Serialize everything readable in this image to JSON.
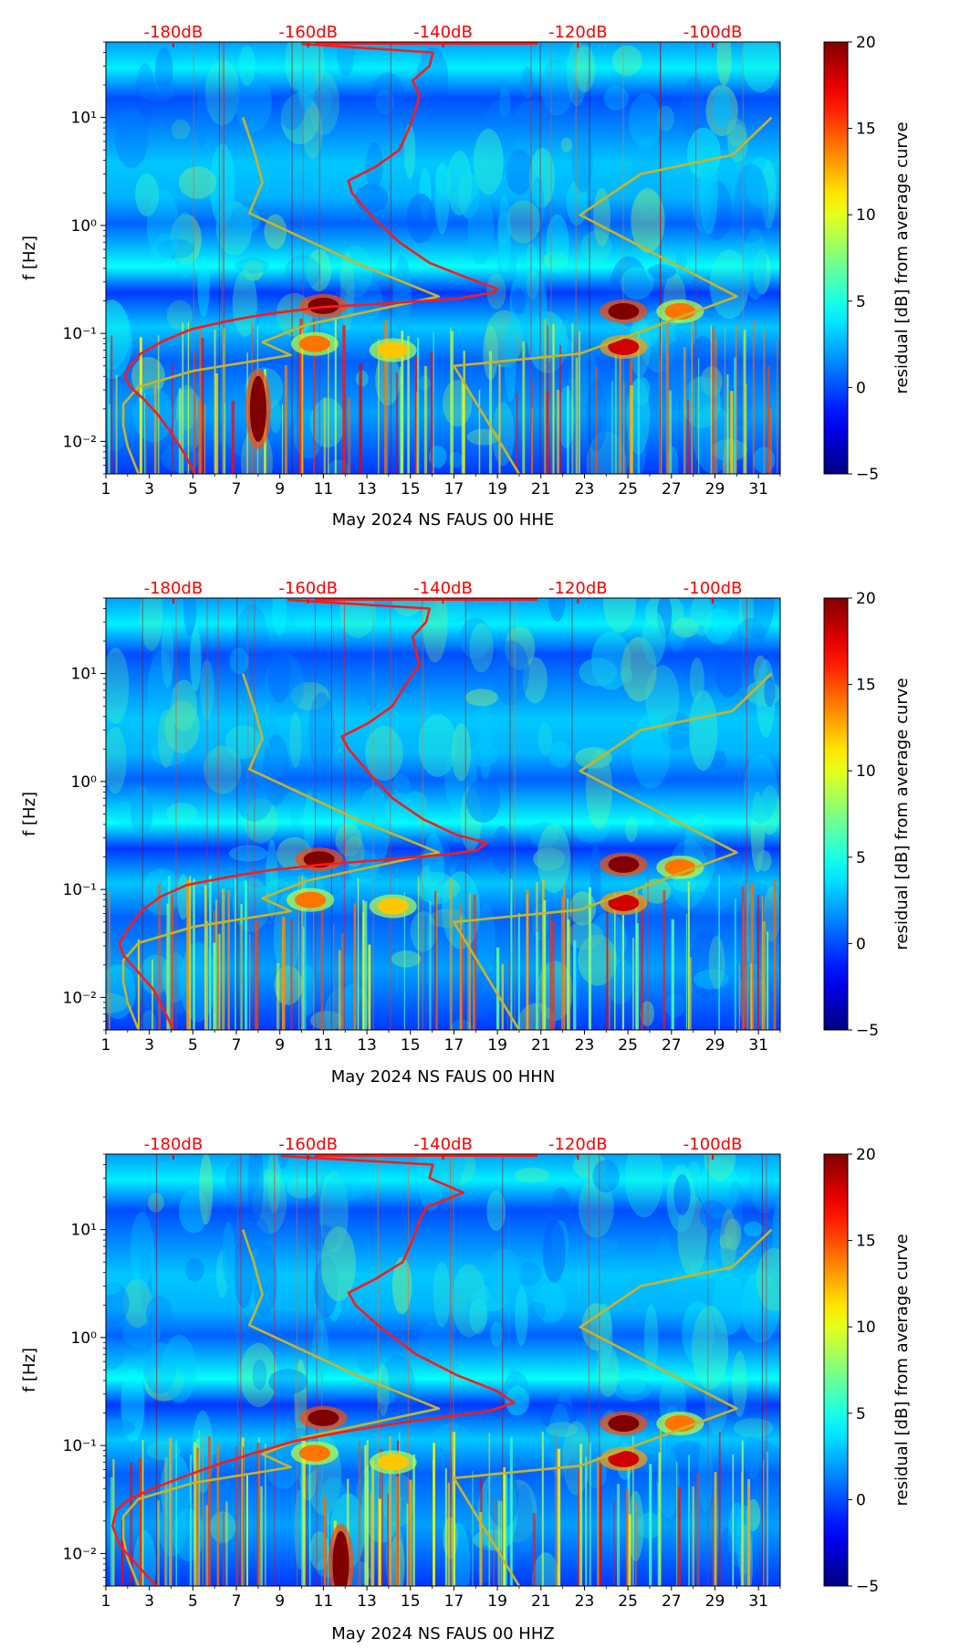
{
  "figure": {
    "colors": {
      "noise_line": "#ff1a1a",
      "model_line": "#c8b428",
      "top_label": "#ff0000",
      "text": "#000000"
    }
  },
  "colorbar": {
    "label": "residual [dB] from average curve",
    "ticks": [
      -5,
      0,
      5,
      10,
      15,
      20
    ],
    "tick_labels": [
      "−5",
      "0",
      "5",
      "10",
      "15",
      "20"
    ],
    "range": [
      -5,
      20
    ]
  },
  "chart_data": [
    {
      "type": "heatmap",
      "title": "",
      "xlabel": "May 2024 NS FAUS 00 HHE",
      "ylabel": "f [Hz]",
      "x_ticks": [
        1,
        3,
        5,
        7,
        9,
        11,
        13,
        15,
        17,
        19,
        21,
        23,
        25,
        27,
        29,
        31
      ],
      "x_tick_labels": [
        "1",
        "3",
        "5",
        "7",
        "9",
        "11",
        "13",
        "15",
        "17",
        "19",
        "21",
        "23",
        "25",
        "27",
        "29",
        "31"
      ],
      "xlim": [
        1,
        32
      ],
      "ylim": [
        0.005,
        50
      ],
      "y_scale": "log",
      "y_ticks": [
        0.01,
        0.1,
        1,
        10
      ],
      "y_tick_labels": [
        "10⁻²",
        "10⁻¹",
        "10⁰",
        "10¹"
      ],
      "top_axis_ticks": [
        -180,
        -160,
        -140,
        -120,
        -100
      ],
      "top_axis_labels": [
        "-180dB",
        "-160dB",
        "-140dB",
        "-120dB",
        "-100dB"
      ],
      "top_axis_range_db": [
        -190,
        -90
      ],
      "hotspots": [
        {
          "day": 11.0,
          "f": 0.18,
          "v": 20
        },
        {
          "day": 10.6,
          "f": 0.08,
          "v": 14
        },
        {
          "day": 24.8,
          "f": 0.16,
          "v": 20
        },
        {
          "day": 24.8,
          "f": 0.075,
          "v": 18
        },
        {
          "day": 27.4,
          "f": 0.16,
          "v": 14
        },
        {
          "day": 14.2,
          "f": 0.07,
          "v": 12
        },
        {
          "day": 8.0,
          "f": 0.02,
          "v": 20
        }
      ],
      "series": [
        {
          "name": "noise level [dB]",
          "points": [
            [
              -176.8,
              0.005
            ],
            [
              -178.5,
              0.008
            ],
            [
              -180.3,
              0.012
            ],
            [
              -182.4,
              0.018
            ],
            [
              -184.5,
              0.025
            ],
            [
              -186.4,
              0.032
            ],
            [
              -187.2,
              0.04
            ],
            [
              -186.5,
              0.05
            ],
            [
              -184.8,
              0.065
            ],
            [
              -181.5,
              0.085
            ],
            [
              -177.2,
              0.11
            ],
            [
              -172.0,
              0.13
            ],
            [
              -166.5,
              0.15
            ],
            [
              -158.0,
              0.175
            ],
            [
              -148.0,
              0.19
            ],
            [
              -138.0,
              0.21
            ],
            [
              -132.5,
              0.24
            ],
            [
              -132.0,
              0.26
            ],
            [
              -136.0,
              0.32
            ],
            [
              -142.0,
              0.45
            ],
            [
              -146.5,
              0.7
            ],
            [
              -150.5,
              1.2
            ],
            [
              -153.5,
              2.0
            ],
            [
              -154.0,
              2.6
            ],
            [
              -150.0,
              3.5
            ],
            [
              -146.5,
              5.0
            ],
            [
              -145.0,
              8.0
            ],
            [
              -144.0,
              12.0
            ],
            [
              -143.5,
              16.0
            ],
            [
              -144.5,
              22.0
            ],
            [
              -142.0,
              30.0
            ],
            [
              -141.5,
              40.0
            ],
            [
              -161.0,
              48.0
            ]
          ]
        },
        {
          "name": "model curve",
          "points": [
            [
              2.5,
              0.005
            ],
            [
              2.0,
              0.009
            ],
            [
              1.8,
              0.014
            ],
            [
              1.8,
              0.022
            ],
            [
              2.5,
              0.032
            ],
            [
              5.0,
              0.045
            ],
            [
              9.5,
              0.063
            ],
            [
              8.2,
              0.083
            ],
            [
              10.2,
              0.12
            ],
            [
              16.3,
              0.22
            ],
            [
              12.5,
              0.45
            ],
            [
              7.6,
              1.3
            ],
            [
              8.2,
              2.5
            ],
            [
              7.8,
              5.0
            ],
            [
              7.3,
              10.0
            ],
            null,
            [
              20.0,
              0.005
            ],
            [
              17.0,
              0.05
            ],
            [
              22.8,
              0.065
            ],
            [
              30.0,
              0.22
            ],
            [
              22.8,
              1.25
            ],
            [
              25.6,
              3.0
            ],
            [
              29.8,
              4.5
            ],
            [
              31.6,
              10.0
            ]
          ]
        }
      ]
    },
    {
      "type": "heatmap",
      "title": "",
      "xlabel": "May 2024 NS FAUS 00 HHN",
      "ylabel": "f [Hz]",
      "x_ticks": [
        1,
        3,
        5,
        7,
        9,
        11,
        13,
        15,
        17,
        19,
        21,
        23,
        25,
        27,
        29,
        31
      ],
      "x_tick_labels": [
        "1",
        "3",
        "5",
        "7",
        "9",
        "11",
        "13",
        "15",
        "17",
        "19",
        "21",
        "23",
        "25",
        "27",
        "29",
        "31"
      ],
      "xlim": [
        1,
        32
      ],
      "ylim": [
        0.005,
        50
      ],
      "y_scale": "log",
      "y_ticks": [
        0.01,
        0.1,
        1,
        10
      ],
      "y_tick_labels": [
        "10⁻²",
        "10⁻¹",
        "10⁰",
        "10¹"
      ],
      "top_axis_ticks": [
        -180,
        -160,
        -140,
        -120,
        -100
      ],
      "top_axis_labels": [
        "-180dB",
        "-160dB",
        "-140dB",
        "-120dB",
        "-100dB"
      ],
      "top_axis_range_db": [
        -190,
        -90
      ],
      "hotspots": [
        {
          "day": 10.8,
          "f": 0.19,
          "v": 20
        },
        {
          "day": 10.4,
          "f": 0.08,
          "v": 14
        },
        {
          "day": 24.8,
          "f": 0.17,
          "v": 20
        },
        {
          "day": 24.8,
          "f": 0.075,
          "v": 18
        },
        {
          "day": 27.4,
          "f": 0.16,
          "v": 14
        },
        {
          "day": 14.2,
          "f": 0.07,
          "v": 12
        }
      ],
      "series": [
        {
          "name": "noise level [dB]",
          "points": [
            [
              -180.0,
              0.005
            ],
            [
              -181.5,
              0.008
            ],
            [
              -183.0,
              0.012
            ],
            [
              -185.5,
              0.018
            ],
            [
              -187.5,
              0.025
            ],
            [
              -188.0,
              0.032
            ],
            [
              -187.0,
              0.04
            ],
            [
              -186.0,
              0.05
            ],
            [
              -184.5,
              0.065
            ],
            [
              -182.0,
              0.085
            ],
            [
              -178.0,
              0.11
            ],
            [
              -172.0,
              0.13
            ],
            [
              -166.0,
              0.15
            ],
            [
              -158.0,
              0.17
            ],
            [
              -148.0,
              0.19
            ],
            [
              -140.0,
              0.21
            ],
            [
              -135.0,
              0.23
            ],
            [
              -133.5,
              0.27
            ],
            [
              -138.0,
              0.32
            ],
            [
              -143.0,
              0.45
            ],
            [
              -147.5,
              0.7
            ],
            [
              -151.0,
              1.2
            ],
            [
              -154.0,
              2.0
            ],
            [
              -155.0,
              2.6
            ],
            [
              -151.0,
              3.5
            ],
            [
              -147.5,
              5.0
            ],
            [
              -145.5,
              8.0
            ],
            [
              -143.5,
              12.0
            ],
            [
              -144.0,
              16.0
            ],
            [
              -144.5,
              22.0
            ],
            [
              -142.5,
              30.0
            ],
            [
              -142.0,
              40.0
            ],
            [
              -163.0,
              48.0
            ]
          ]
        },
        {
          "name": "model curve",
          "points": [
            [
              2.5,
              0.005
            ],
            [
              2.0,
              0.009
            ],
            [
              1.8,
              0.014
            ],
            [
              1.8,
              0.022
            ],
            [
              2.5,
              0.032
            ],
            [
              5.0,
              0.045
            ],
            [
              9.5,
              0.063
            ],
            [
              8.2,
              0.083
            ],
            [
              10.2,
              0.12
            ],
            [
              16.3,
              0.22
            ],
            [
              12.5,
              0.45
            ],
            [
              7.6,
              1.3
            ],
            [
              8.2,
              2.5
            ],
            [
              7.8,
              5.0
            ],
            [
              7.3,
              10.0
            ],
            null,
            [
              20.0,
              0.005
            ],
            [
              17.0,
              0.05
            ],
            [
              22.8,
              0.065
            ],
            [
              30.0,
              0.22
            ],
            [
              22.8,
              1.25
            ],
            [
              25.6,
              3.0
            ],
            [
              29.8,
              4.5
            ],
            [
              31.6,
              10.0
            ]
          ]
        }
      ]
    },
    {
      "type": "heatmap",
      "title": "",
      "xlabel": "May 2024 NS FAUS 00 HHZ",
      "ylabel": "f [Hz]",
      "x_ticks": [
        1,
        3,
        5,
        7,
        9,
        11,
        13,
        15,
        17,
        19,
        21,
        23,
        25,
        27,
        29,
        31
      ],
      "x_tick_labels": [
        "1",
        "3",
        "5",
        "7",
        "9",
        "11",
        "13",
        "15",
        "17",
        "19",
        "21",
        "23",
        "25",
        "27",
        "29",
        "31"
      ],
      "xlim": [
        1,
        32
      ],
      "ylim": [
        0.005,
        50
      ],
      "y_scale": "log",
      "y_ticks": [
        0.01,
        0.1,
        1,
        10
      ],
      "y_tick_labels": [
        "10⁻²",
        "10⁻¹",
        "10⁰",
        "10¹"
      ],
      "top_axis_ticks": [
        -180,
        -160,
        -140,
        -120,
        -100
      ],
      "top_axis_labels": [
        "-180dB",
        "-160dB",
        "-140dB",
        "-120dB",
        "-100dB"
      ],
      "top_axis_range_db": [
        -190,
        -90
      ],
      "hotspots": [
        {
          "day": 11.0,
          "f": 0.18,
          "v": 20
        },
        {
          "day": 10.6,
          "f": 0.085,
          "v": 14
        },
        {
          "day": 24.8,
          "f": 0.16,
          "v": 20
        },
        {
          "day": 24.8,
          "f": 0.075,
          "v": 18
        },
        {
          "day": 27.4,
          "f": 0.16,
          "v": 14
        },
        {
          "day": 14.2,
          "f": 0.07,
          "v": 12
        },
        {
          "day": 11.8,
          "f": 0.008,
          "v": 20
        }
      ],
      "series": [
        {
          "name": "noise level [dB]",
          "points": [
            [
              -182.5,
              0.005
            ],
            [
              -185.5,
              0.008
            ],
            [
              -188.0,
              0.012
            ],
            [
              -189.0,
              0.018
            ],
            [
              -188.5,
              0.025
            ],
            [
              -186.5,
              0.032
            ],
            [
              -183.0,
              0.04
            ],
            [
              -179.0,
              0.05
            ],
            [
              -174.0,
              0.065
            ],
            [
              -168.0,
              0.085
            ],
            [
              -162.0,
              0.11
            ],
            [
              -156.0,
              0.13
            ],
            [
              -150.0,
              0.15
            ],
            [
              -144.0,
              0.17
            ],
            [
              -138.0,
              0.19
            ],
            [
              -133.0,
              0.21
            ],
            [
              -129.5,
              0.25
            ],
            [
              -132.0,
              0.32
            ],
            [
              -138.0,
              0.45
            ],
            [
              -144.0,
              0.7
            ],
            [
              -149.0,
              1.2
            ],
            [
              -153.0,
              2.0
            ],
            [
              -154.0,
              2.6
            ],
            [
              -150.0,
              3.5
            ],
            [
              -146.0,
              5.0
            ],
            [
              -144.5,
              8.0
            ],
            [
              -143.5,
              12.0
            ],
            [
              -142.5,
              16.0
            ],
            [
              -137.0,
              22.0
            ],
            [
              -142.0,
              30.0
            ],
            [
              -141.5,
              40.0
            ],
            [
              -164.0,
              48.0
            ]
          ]
        },
        {
          "name": "model curve",
          "points": [
            [
              2.5,
              0.005
            ],
            [
              2.0,
              0.009
            ],
            [
              1.8,
              0.014
            ],
            [
              1.8,
              0.022
            ],
            [
              2.5,
              0.032
            ],
            [
              5.0,
              0.045
            ],
            [
              9.5,
              0.063
            ],
            [
              8.2,
              0.083
            ],
            [
              10.2,
              0.12
            ],
            [
              16.3,
              0.22
            ],
            [
              12.5,
              0.45
            ],
            [
              7.6,
              1.3
            ],
            [
              8.2,
              2.5
            ],
            [
              7.8,
              5.0
            ],
            [
              7.3,
              10.0
            ],
            null,
            [
              20.0,
              0.005
            ],
            [
              17.0,
              0.05
            ],
            [
              22.8,
              0.065
            ],
            [
              30.0,
              0.22
            ],
            [
              22.8,
              1.25
            ],
            [
              25.6,
              3.0
            ],
            [
              29.8,
              4.5
            ],
            [
              31.6,
              10.0
            ]
          ]
        }
      ]
    }
  ]
}
